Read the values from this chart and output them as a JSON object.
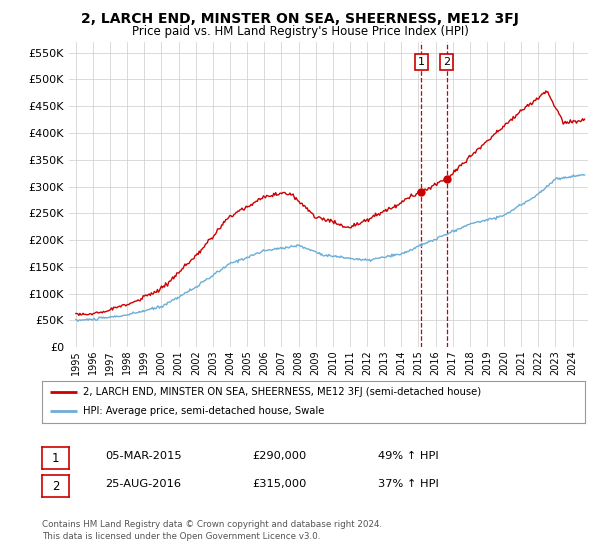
{
  "title": "2, LARCH END, MINSTER ON SEA, SHEERNESS, ME12 3FJ",
  "subtitle": "Price paid vs. HM Land Registry's House Price Index (HPI)",
  "legend_line1": "2, LARCH END, MINSTER ON SEA, SHEERNESS, ME12 3FJ (semi-detached house)",
  "legend_line2": "HPI: Average price, semi-detached house, Swale",
  "annotation1_label": "1",
  "annotation1_date": "05-MAR-2015",
  "annotation1_price": "£290,000",
  "annotation1_pct": "49% ↑ HPI",
  "annotation2_label": "2",
  "annotation2_date": "25-AUG-2016",
  "annotation2_price": "£315,000",
  "annotation2_pct": "37% ↑ HPI",
  "footnote1": "Contains HM Land Registry data © Crown copyright and database right 2024.",
  "footnote2": "This data is licensed under the Open Government Licence v3.0.",
  "hpi_color": "#6baed6",
  "sale_color": "#cc0000",
  "vline_color": "#cc0000",
  "annotation_box_color": "#cc0000",
  "grid_color": "#cccccc",
  "background_color": "#ffffff",
  "ylim_min": 0,
  "ylim_max": 570000,
  "xlim_min": 1994.6,
  "xlim_max": 2024.9,
  "vline1_year": 2015.17,
  "vline2_year": 2016.65,
  "sale1_price": 290000,
  "sale2_price": 315000,
  "yticks": [
    0,
    50000,
    100000,
    150000,
    200000,
    250000,
    300000,
    350000,
    400000,
    450000,
    500000,
    550000
  ],
  "xtick_start": 1995,
  "xtick_end": 2025
}
